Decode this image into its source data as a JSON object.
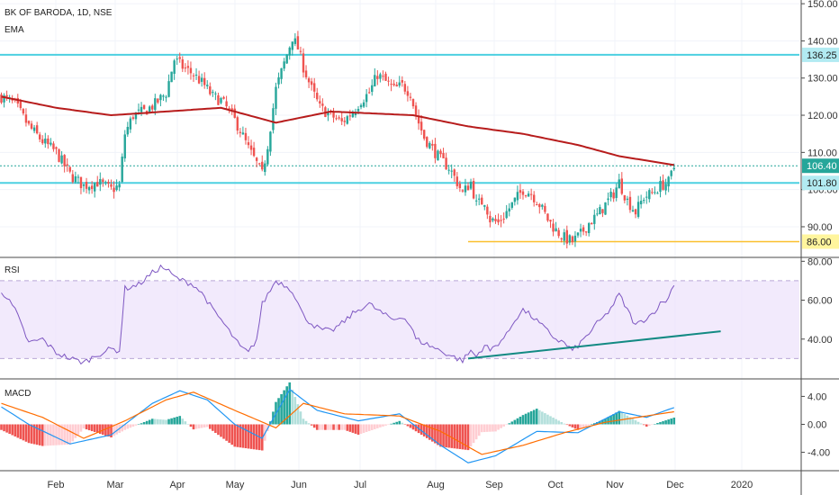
{
  "header": {
    "symbol": "BK OF BARODA, 1D, NSE",
    "indicator": "EMA"
  },
  "chart_data": [
    {
      "panel": "price",
      "type": "candlestick",
      "title": "BK OF BARODA, 1D, NSE",
      "ylim": [
        82,
        151
      ],
      "y_ticks": [
        "150.00",
        "140.00",
        "130.00",
        "120.00",
        "110.00",
        "100.00",
        "90.00"
      ],
      "x_ticks": [
        "Feb",
        "Mar",
        "Apr",
        "May",
        "Jun",
        "Jul",
        "Aug",
        "Sep",
        "Oct",
        "Nov",
        "Dec",
        "2020"
      ],
      "grid": true,
      "colors": {
        "up": "#26a69a",
        "down": "#ef5350",
        "ema": "#b71c1c",
        "level": "#4dd0e1",
        "support": "#fbc02d"
      },
      "close_anchors": [
        [
          0,
          125
        ],
        [
          5,
          123
        ],
        [
          10,
          117
        ],
        [
          15,
          113
        ],
        [
          20,
          110
        ],
        [
          25,
          104
        ],
        [
          30,
          101
        ],
        [
          35,
          102
        ],
        [
          40,
          100
        ],
        [
          43,
          101
        ],
        [
          45,
          115
        ],
        [
          48,
          120
        ],
        [
          52,
          121
        ],
        [
          56,
          123
        ],
        [
          60,
          126
        ],
        [
          63,
          135
        ],
        [
          66,
          133
        ],
        [
          70,
          131
        ],
        [
          74,
          128
        ],
        [
          77,
          125
        ],
        [
          80,
          124
        ],
        [
          84,
          120
        ],
        [
          87,
          116
        ],
        [
          90,
          111
        ],
        [
          93,
          107
        ],
        [
          95,
          104
        ],
        [
          97,
          112
        ],
        [
          100,
          127
        ],
        [
          103,
          134
        ],
        [
          106,
          141
        ],
        [
          108,
          138
        ],
        [
          110,
          133
        ],
        [
          113,
          127
        ],
        [
          116,
          122
        ],
        [
          120,
          120
        ],
        [
          124,
          118
        ],
        [
          128,
          121
        ],
        [
          131,
          124
        ],
        [
          134,
          126
        ],
        [
          137,
          131
        ],
        [
          140,
          129
        ],
        [
          143,
          127
        ],
        [
          146,
          128
        ],
        [
          149,
          126
        ],
        [
          151,
          120
        ],
        [
          154,
          114
        ],
        [
          157,
          111
        ],
        [
          160,
          108
        ],
        [
          163,
          106
        ],
        [
          166,
          102
        ],
        [
          168,
          99
        ],
        [
          171,
          102
        ],
        [
          173,
          96
        ],
        [
          176,
          97
        ],
        [
          178,
          92
        ],
        [
          181,
          91
        ],
        [
          184,
          94
        ],
        [
          187,
          97
        ],
        [
          190,
          100
        ],
        [
          193,
          99
        ],
        [
          196,
          96
        ],
        [
          199,
          92
        ],
        [
          202,
          89
        ],
        [
          205,
          87
        ],
        [
          208,
          86
        ],
        [
          211,
          88
        ],
        [
          214,
          91
        ],
        [
          217,
          93
        ],
        [
          220,
          96
        ],
        [
          223,
          99
        ],
        [
          225,
          102
        ],
        [
          228,
          97
        ],
        [
          231,
          94
        ],
        [
          234,
          98
        ],
        [
          237,
          99
        ],
        [
          240,
          101
        ],
        [
          243,
          102
        ],
        [
          245,
          106
        ]
      ],
      "ema": [
        [
          0,
          125
        ],
        [
          20,
          122
        ],
        [
          40,
          120
        ],
        [
          60,
          121
        ],
        [
          80,
          122
        ],
        [
          100,
          118
        ],
        [
          120,
          121
        ],
        [
          150,
          120
        ],
        [
          170,
          117
        ],
        [
          190,
          115
        ],
        [
          210,
          112
        ],
        [
          225,
          109
        ],
        [
          245,
          106.6
        ]
      ],
      "levels": [
        {
          "label": "136.25",
          "value": 136.25,
          "style": "solid"
        },
        {
          "label": "106.40",
          "value": 106.4,
          "style": "dotted"
        },
        {
          "label": "101.80",
          "value": 101.8,
          "style": "solid"
        },
        {
          "label": "86.00",
          "value": 86,
          "style": "support",
          "from_index": 170
        }
      ]
    },
    {
      "panel": "rsi",
      "type": "line",
      "title": "RSI",
      "ylim": [
        20,
        82
      ],
      "y_ticks": [
        "80.00",
        "60.00",
        "40.00"
      ],
      "band": [
        30,
        70
      ],
      "anchors": [
        [
          0,
          65
        ],
        [
          5,
          55
        ],
        [
          10,
          38
        ],
        [
          15,
          40
        ],
        [
          20,
          33
        ],
        [
          25,
          30
        ],
        [
          30,
          28
        ],
        [
          35,
          32
        ],
        [
          40,
          35
        ],
        [
          43,
          34
        ],
        [
          45,
          66
        ],
        [
          50,
          68
        ],
        [
          55,
          74
        ],
        [
          58,
          77
        ],
        [
          60,
          76
        ],
        [
          63,
          72
        ],
        [
          66,
          70
        ],
        [
          70,
          68
        ],
        [
          74,
          62
        ],
        [
          77,
          55
        ],
        [
          80,
          50
        ],
        [
          84,
          42
        ],
        [
          87,
          36
        ],
        [
          90,
          33
        ],
        [
          93,
          40
        ],
        [
          95,
          58
        ],
        [
          100,
          70
        ],
        [
          103,
          68
        ],
        [
          106,
          65
        ],
        [
          110,
          52
        ],
        [
          113,
          48
        ],
        [
          116,
          45
        ],
        [
          120,
          44
        ],
        [
          124,
          48
        ],
        [
          128,
          53
        ],
        [
          131,
          56
        ],
        [
          134,
          58
        ],
        [
          137,
          55
        ],
        [
          140,
          52
        ],
        [
          143,
          50
        ],
        [
          146,
          52
        ],
        [
          149,
          47
        ],
        [
          151,
          40
        ],
        [
          154,
          38
        ],
        [
          157,
          36
        ],
        [
          160,
          34
        ],
        [
          163,
          32
        ],
        [
          166,
          30
        ],
        [
          168,
          29
        ],
        [
          171,
          34
        ],
        [
          173,
          31
        ],
        [
          176,
          37
        ],
        [
          178,
          34
        ],
        [
          181,
          38
        ],
        [
          184,
          42
        ],
        [
          187,
          50
        ],
        [
          190,
          55
        ],
        [
          193,
          52
        ],
        [
          196,
          48
        ],
        [
          199,
          44
        ],
        [
          202,
          40
        ],
        [
          205,
          38
        ],
        [
          208,
          34
        ],
        [
          211,
          38
        ],
        [
          214,
          43
        ],
        [
          217,
          48
        ],
        [
          220,
          52
        ],
        [
          223,
          58
        ],
        [
          225,
          63
        ],
        [
          228,
          55
        ],
        [
          231,
          47
        ],
        [
          234,
          50
        ],
        [
          237,
          53
        ],
        [
          240,
          58
        ],
        [
          243,
          61
        ],
        [
          245,
          69
        ]
      ],
      "trendline": [
        [
          170,
          30
        ],
        [
          262,
          44
        ]
      ]
    },
    {
      "panel": "macd",
      "type": "line+histogram",
      "title": "MACD",
      "ylim": [
        -6.5,
        6.5
      ],
      "y_ticks": [
        "4.00",
        "0.00",
        "-4.00"
      ],
      "macd_anchors": [
        [
          0,
          2.5
        ],
        [
          10,
          0
        ],
        [
          25,
          -2.8
        ],
        [
          40,
          -1.5
        ],
        [
          55,
          3
        ],
        [
          65,
          4.8
        ],
        [
          75,
          3.5
        ],
        [
          85,
          0
        ],
        [
          95,
          -2
        ],
        [
          105,
          5
        ],
        [
          115,
          2
        ],
        [
          130,
          0.5
        ],
        [
          145,
          1.5
        ],
        [
          160,
          -3
        ],
        [
          170,
          -5.5
        ],
        [
          180,
          -4.5
        ],
        [
          195,
          -1
        ],
        [
          210,
          -1.2
        ],
        [
          225,
          1.8
        ],
        [
          235,
          1
        ],
        [
          245,
          2.4
        ]
      ],
      "signal_anchors": [
        [
          0,
          3
        ],
        [
          15,
          1
        ],
        [
          30,
          -2
        ],
        [
          45,
          0.5
        ],
        [
          60,
          3.5
        ],
        [
          70,
          4.6
        ],
        [
          85,
          2
        ],
        [
          100,
          -0.5
        ],
        [
          110,
          3
        ],
        [
          125,
          1.5
        ],
        [
          145,
          1.2
        ],
        [
          160,
          -1
        ],
        [
          175,
          -4.3
        ],
        [
          190,
          -3
        ],
        [
          205,
          -1.2
        ],
        [
          220,
          0.3
        ],
        [
          235,
          1.2
        ],
        [
          245,
          1.8
        ]
      ]
    }
  ]
}
